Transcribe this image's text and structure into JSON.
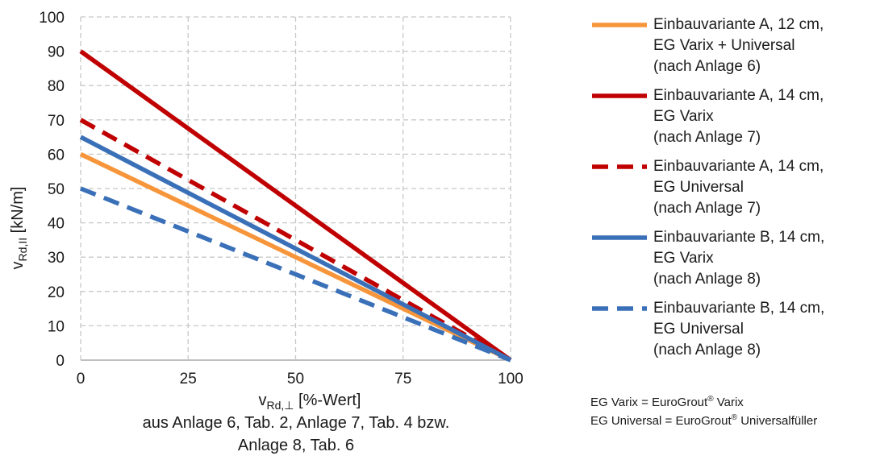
{
  "chart_data": {
    "type": "line",
    "xlabel_main": "v",
    "xlabel_sub": "Rd,⊥",
    "xlabel_rest": " [%-Wert]",
    "xlabel_line2": "aus Anlage 6, Tab. 2, Anlage 7, Tab. 4 bzw.",
    "xlabel_line3": "Anlage 8, Tab. 6",
    "ylabel_main": "v",
    "ylabel_sub": "Rd,II",
    "ylabel_rest": " [kN/m]",
    "xlim": [
      0,
      100
    ],
    "ylim": [
      0,
      100
    ],
    "xticks": [
      0,
      25,
      50,
      75,
      100
    ],
    "yticks": [
      0,
      10,
      20,
      30,
      40,
      50,
      60,
      70,
      80,
      90,
      100
    ],
    "grid": true,
    "legend_position": "right",
    "series": [
      {
        "name": "Einbauvariante A, 12 cm,\nEG Varix + Universal\n(nach Anlage 6)",
        "color": "#f7953b",
        "dash": "solid",
        "x": [
          0,
          100
        ],
        "y": [
          60,
          0
        ]
      },
      {
        "name": "Einbauvariante A, 14 cm,\nEG Varix\n(nach Anlage 7)",
        "color": "#c00000",
        "dash": "solid",
        "x": [
          0,
          100
        ],
        "y": [
          90,
          0
        ]
      },
      {
        "name": "Einbauvariante A, 14 cm,\nEG Universal\n(nach Anlage 7)",
        "color": "#c00000",
        "dash": "dashed",
        "x": [
          0,
          100
        ],
        "y": [
          70,
          0
        ]
      },
      {
        "name": "Einbauvariante B, 14 cm,\nEG Varix\n(nach Anlage 8)",
        "color": "#3a70b8",
        "dash": "solid",
        "x": [
          0,
          100
        ],
        "y": [
          65,
          0
        ]
      },
      {
        "name": "Einbauvariante B, 14 cm,\nEG Universal\n(nach Anlage 8)",
        "color": "#3a70b8",
        "dash": "dashed",
        "x": [
          0,
          100
        ],
        "y": [
          50,
          0
        ]
      }
    ]
  },
  "notes": {
    "varix_prefix": "EG Varix = EuroGrout",
    "varix_reg": "®",
    "varix_suffix": " Varix",
    "universal_prefix": "EG Universal = EuroGrout",
    "universal_reg": "®",
    "universal_suffix": " Universalfüller"
  }
}
